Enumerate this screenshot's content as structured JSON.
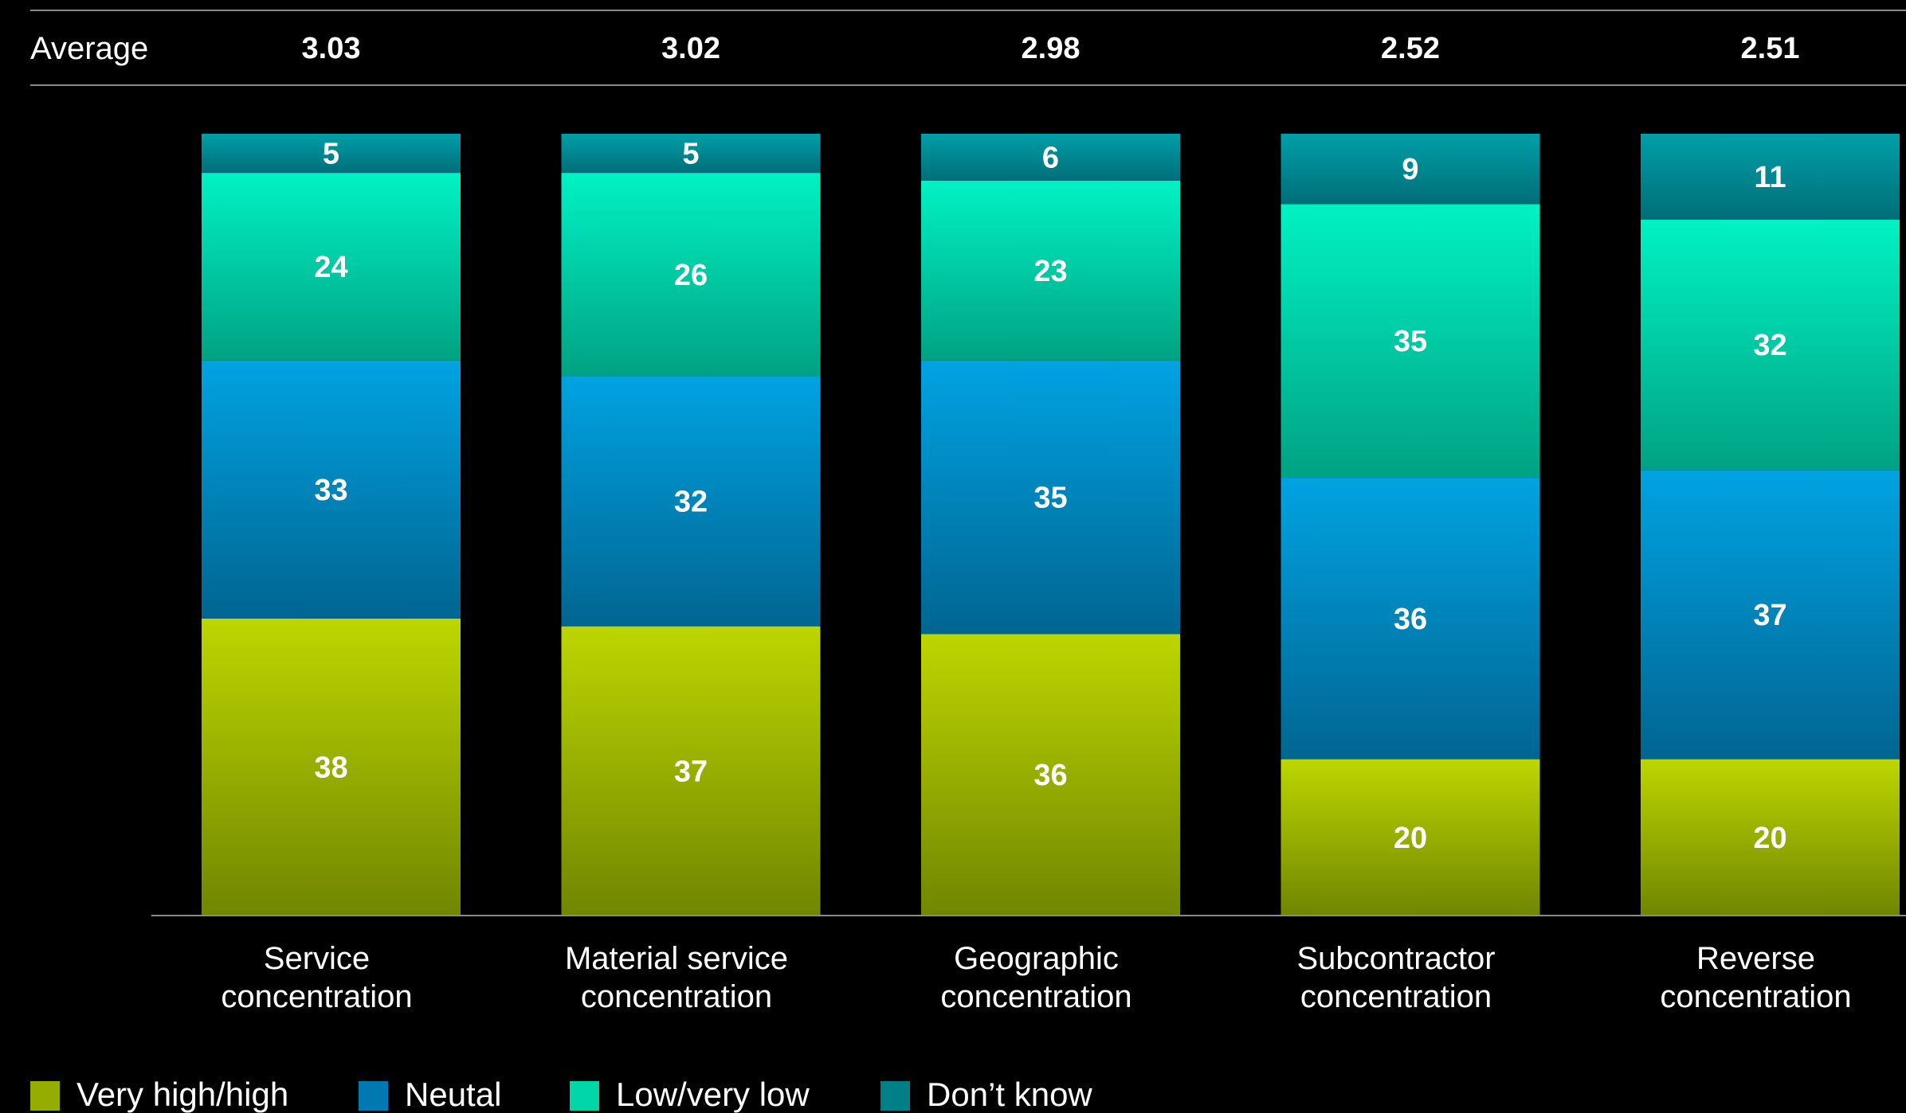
{
  "chart_data": {
    "type": "bar",
    "stacked": true,
    "average_label": "Average",
    "averages": [
      "3.03",
      "3.02",
      "2.98",
      "2.52",
      "2.51"
    ],
    "categories": [
      [
        "Service",
        "concentration"
      ],
      [
        "Material service",
        "concentration"
      ],
      [
        "Geographic",
        "concentration"
      ],
      [
        "Subcontractor",
        "concentration"
      ],
      [
        "Reverse",
        "concentration"
      ]
    ],
    "series": [
      {
        "name": "Very high/high",
        "values": [
          38,
          37,
          36,
          20,
          20
        ],
        "color_top": "#bdd600",
        "color_bottom": "#708600",
        "swatch": "#95ad00"
      },
      {
        "name": "Neutal",
        "values": [
          33,
          32,
          35,
          36,
          37
        ],
        "color_top": "#00a3e2",
        "color_bottom": "#006591",
        "swatch": "#0078b2"
      },
      {
        "name": "Low/very low",
        "values": [
          24,
          26,
          23,
          35,
          32
        ],
        "color_top": "#00f2c3",
        "color_bottom": "#00a283",
        "swatch": "#00d6a8"
      },
      {
        "name": "Don’t know",
        "values": [
          5,
          5,
          6,
          9,
          11
        ],
        "color_top": "#009fa8",
        "color_bottom": "#006e78",
        "swatch": "#007f89"
      }
    ],
    "ylim": [
      0,
      100
    ],
    "grid": false,
    "legend_position": "bottom-left"
  }
}
